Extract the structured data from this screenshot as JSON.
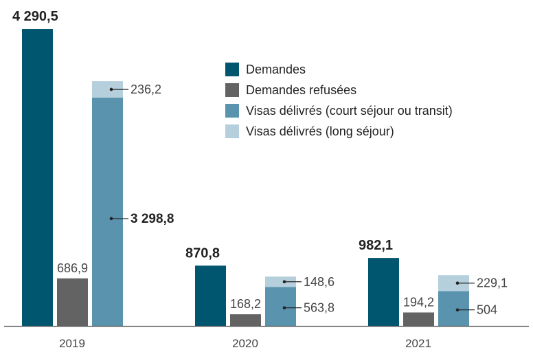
{
  "colors": {
    "demandes": "#00566e",
    "refusees": "#636363",
    "court": "#5a93ad",
    "long": "#b5cfdc",
    "axis": "#555555",
    "text": "#222222",
    "tick": "#444444"
  },
  "chart_data": {
    "type": "bar",
    "title": "",
    "xlabel": "",
    "ylabel": "",
    "ylim": [
      0,
      4400
    ],
    "categories": [
      "2019",
      "2020",
      "2021"
    ],
    "series": [
      {
        "name": "Demandes",
        "values": [
          4290.5,
          870.8,
          982.1
        ],
        "labels": [
          "4 290,5",
          "870,8",
          "982,1"
        ]
      },
      {
        "name": "Demandes refusées",
        "values": [
          686.9,
          168.2,
          194.2
        ],
        "labels": [
          "686,9",
          "168,2",
          "194,2"
        ]
      },
      {
        "name": "Visas délivrés (court séjour ou transit)",
        "values": [
          3298.8,
          563.8,
          504
        ],
        "labels": [
          "3 298,8",
          "563,8",
          "504"
        ]
      },
      {
        "name": "Visas délivrés (long séjour)",
        "values": [
          236.2,
          148.6,
          229.1
        ],
        "labels": [
          "236,2",
          "148,6",
          "229,1"
        ]
      }
    ],
    "stacked_visas": true
  },
  "legend": {
    "items": [
      {
        "label": "Demandes",
        "color_key": "demandes"
      },
      {
        "label": "Demandes refusées",
        "color_key": "refusees"
      },
      {
        "label": "Visas délivrés (court séjour ou transit)",
        "color_key": "court"
      },
      {
        "label": "Visas délivrés (long séjour)",
        "color_key": "long"
      }
    ]
  }
}
